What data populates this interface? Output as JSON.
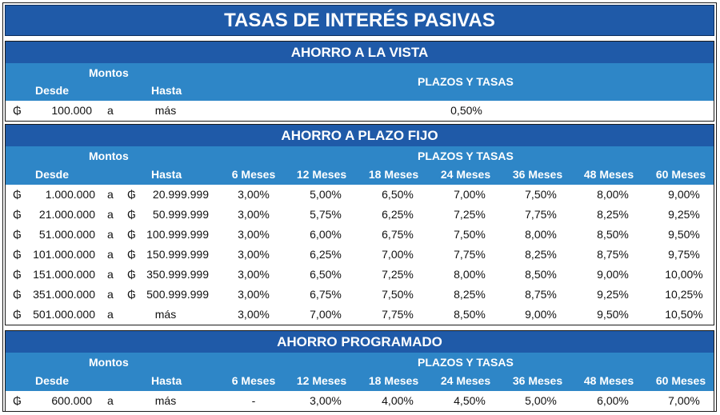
{
  "title": "TASAS DE INTERÉS PASIVAS",
  "currency_symbol": "₲",
  "vista": {
    "heading": "AHORRO A LA VISTA",
    "montos": "Montos",
    "desde": "Desde",
    "hasta": "Hasta",
    "plazos": "PLAZOS Y TASAS",
    "row": {
      "desde": "100.000",
      "a": "a",
      "hasta": "más",
      "tasa": "0,50%"
    }
  },
  "fijo": {
    "heading": "AHORRO A PLAZO FIJO",
    "montos": "Montos",
    "desde": "Desde",
    "hasta": "Hasta",
    "plazos": "PLAZOS Y TASAS",
    "terms": [
      "6 Meses",
      "12 Meses",
      "18 Meses",
      "24 Meses",
      "36 Meses",
      "48 Meses",
      "60 Meses"
    ],
    "rows": [
      {
        "desde": "1.000.000",
        "a": "a",
        "hasta_sym": true,
        "hasta": "20.999.999",
        "rates": [
          "3,00%",
          "5,00%",
          "6,50%",
          "7,00%",
          "7,50%",
          "8,00%",
          "9,00%"
        ]
      },
      {
        "desde": "21.000.000",
        "a": "a",
        "hasta_sym": true,
        "hasta": "50.999.999",
        "rates": [
          "3,00%",
          "5,75%",
          "6,25%",
          "7,25%",
          "7,75%",
          "8,25%",
          "9,25%"
        ]
      },
      {
        "desde": "51.000.000",
        "a": "a",
        "hasta_sym": true,
        "hasta": "100.999.999",
        "rates": [
          "3,00%",
          "6,00%",
          "6,75%",
          "7,50%",
          "8,00%",
          "8,50%",
          "9,50%"
        ]
      },
      {
        "desde": "101.000.000",
        "a": "a",
        "hasta_sym": true,
        "hasta": "150.999.999",
        "rates": [
          "3,00%",
          "6,25%",
          "7,00%",
          "7,75%",
          "8,25%",
          "8,75%",
          "9,75%"
        ]
      },
      {
        "desde": "151.000.000",
        "a": "a",
        "hasta_sym": true,
        "hasta": "350.999.999",
        "rates": [
          "3,00%",
          "6,50%",
          "7,25%",
          "8,00%",
          "8,50%",
          "9,00%",
          "10,00%"
        ]
      },
      {
        "desde": "351.000.000",
        "a": "a",
        "hasta_sym": true,
        "hasta": "500.999.999",
        "rates": [
          "3,00%",
          "6,75%",
          "7,50%",
          "8,25%",
          "8,75%",
          "9,25%",
          "10,25%"
        ]
      },
      {
        "desde": "501.000.000",
        "a": "a",
        "hasta_sym": false,
        "hasta": "más",
        "rates": [
          "3,00%",
          "7,00%",
          "7,75%",
          "8,50%",
          "9,00%",
          "9,50%",
          "10,50%"
        ]
      }
    ]
  },
  "programado": {
    "heading": "AHORRO PROGRAMADO",
    "montos": "Montos",
    "desde": "Desde",
    "hasta": "Hasta",
    "plazos": "PLAZOS Y TASAS",
    "terms": [
      "6 Meses",
      "12 Meses",
      "18 Meses",
      "24 Meses",
      "36 Meses",
      "48 Meses",
      "60 Meses"
    ],
    "row": {
      "desde": "600.000",
      "a": "a",
      "hasta": "más",
      "rates": [
        "-",
        "3,00%",
        "4,00%",
        "4,50%",
        "5,00%",
        "6,00%",
        "7,00%"
      ]
    }
  }
}
